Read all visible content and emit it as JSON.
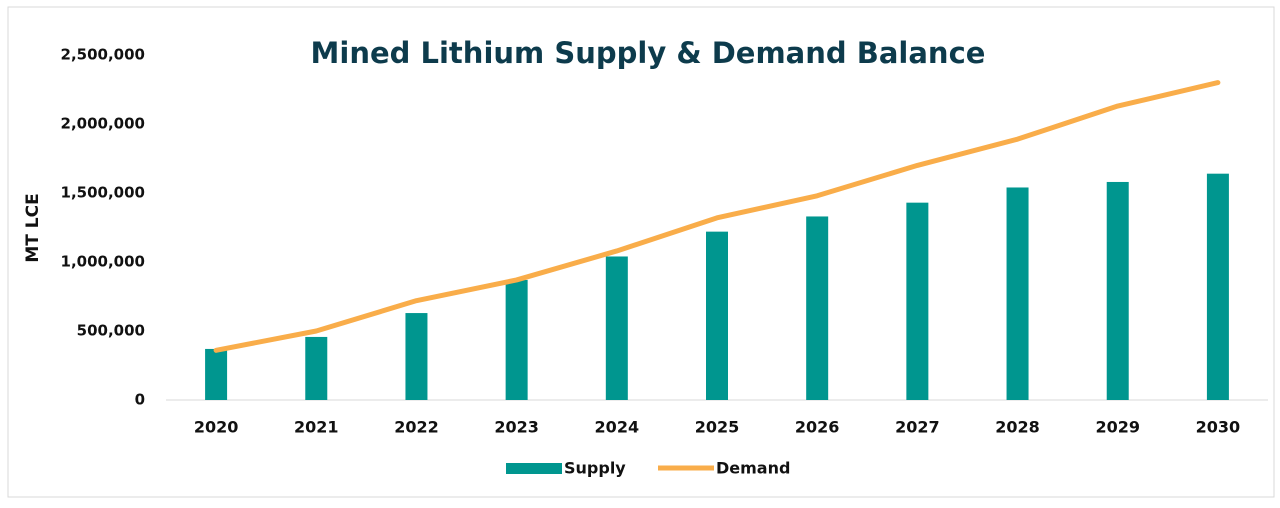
{
  "chart_data": {
    "type": "bar_line",
    "title": "Mined Lithium Supply & Demand Balance",
    "ylabel": "MT LCE",
    "categories": [
      "2020",
      "2021",
      "2022",
      "2023",
      "2024",
      "2025",
      "2026",
      "2027",
      "2028",
      "2029",
      "2030"
    ],
    "series": [
      {
        "name": "Supply",
        "type": "bar",
        "color": "#00968f",
        "values": [
          370000,
          457000,
          630000,
          870000,
          1040000,
          1220000,
          1330000,
          1430000,
          1540000,
          1580000,
          1640000
        ]
      },
      {
        "name": "Demand",
        "type": "line",
        "color": "#f9ad4a",
        "values": [
          360000,
          500000,
          720000,
          870000,
          1080000,
          1320000,
          1480000,
          1700000,
          1890000,
          2130000,
          2300000
        ]
      }
    ],
    "ylim": [
      0,
      2500000
    ],
    "yticks": [
      0,
      {
        "value": 500000,
        "label": "500,000"
      },
      {
        "value": 1000000,
        "label": "1,000,000"
      },
      {
        "value": 1500000,
        "label": "1,500,000"
      },
      {
        "value": 2000000,
        "label": "2,000,000"
      },
      {
        "value": 2500000,
        "label": "2,500,000"
      }
    ],
    "legend": "bottom"
  }
}
